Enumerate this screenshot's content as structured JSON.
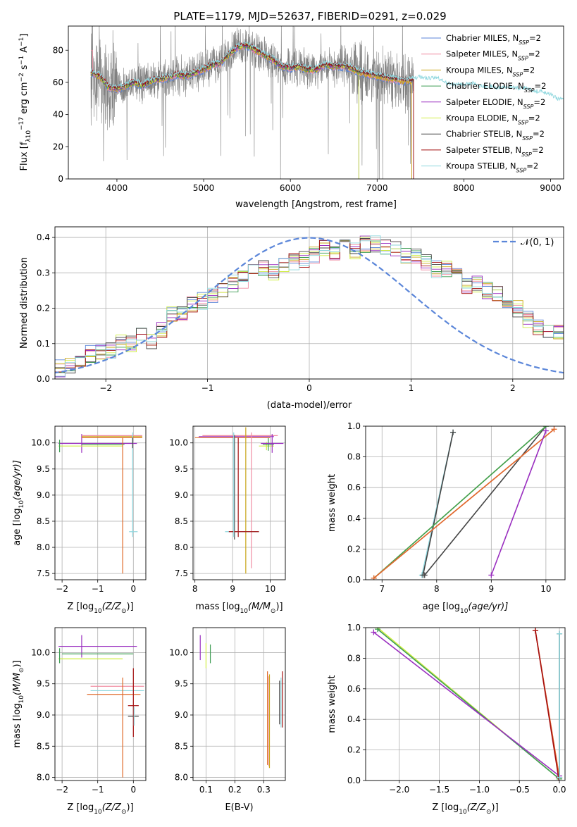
{
  "figure": {
    "title": "PLATE=1179, MJD=52637, FIBERID=0291, z=0.029"
  },
  "chart_data": [
    {
      "id": "spectrum",
      "type": "line",
      "xlabel": "wavelength [Angstrom, rest frame]",
      "ylabel_parts": [
        "Flux [f",
        "λ",
        "10",
        "−17",
        " erg cm",
        "−2",
        " s",
        "−1",
        " A",
        "−1",
        "]"
      ],
      "xlim": [
        3440,
        9150
      ],
      "ylim": [
        0,
        95
      ],
      "xticks": [
        4000,
        5000,
        6000,
        7000,
        8000,
        9000
      ],
      "yticks": [
        0,
        20,
        40,
        60,
        80
      ],
      "grid": false,
      "legend_position": "top-right",
      "data_color": "#808080",
      "data_range": [
        3700,
        7420
      ],
      "model_continuum": [
        [
          3700,
          66
        ],
        [
          3800,
          64
        ],
        [
          3900,
          57
        ],
        [
          4000,
          56
        ],
        [
          4100,
          58
        ],
        [
          4200,
          60
        ],
        [
          4300,
          58
        ],
        [
          4400,
          61
        ],
        [
          4500,
          62
        ],
        [
          4600,
          63
        ],
        [
          4700,
          65
        ],
        [
          4800,
          64
        ],
        [
          4900,
          66
        ],
        [
          5000,
          68
        ],
        [
          5100,
          71
        ],
        [
          5200,
          72
        ],
        [
          5300,
          78
        ],
        [
          5400,
          82
        ],
        [
          5500,
          83
        ],
        [
          5600,
          80
        ],
        [
          5700,
          77
        ],
        [
          5800,
          74
        ],
        [
          5900,
          70
        ],
        [
          6000,
          69
        ],
        [
          6100,
          70
        ],
        [
          6200,
          68
        ],
        [
          6300,
          68
        ],
        [
          6400,
          71
        ],
        [
          6500,
          70
        ],
        [
          6600,
          70
        ],
        [
          6700,
          69
        ],
        [
          6800,
          66
        ],
        [
          6900,
          65
        ],
        [
          7000,
          64
        ],
        [
          7100,
          63
        ],
        [
          7200,
          62
        ],
        [
          7300,
          61
        ],
        [
          7400,
          61
        ],
        [
          7500,
          62
        ],
        [
          7600,
          61
        ],
        [
          7700,
          61
        ],
        [
          7800,
          58
        ],
        [
          7900,
          57
        ],
        [
          8000,
          57
        ],
        [
          8100,
          58
        ],
        [
          8200,
          56
        ],
        [
          8300,
          56
        ],
        [
          8400,
          55
        ],
        [
          8500,
          56
        ],
        [
          8600,
          55
        ],
        [
          8700,
          55
        ],
        [
          8800,
          53
        ],
        [
          8900,
          53
        ],
        [
          9000,
          51
        ],
        [
          9100,
          48
        ]
      ],
      "series": [
        {
          "name": "Chabrier MILES, N",
          "sub": "SSP",
          "suffix": "=2",
          "color": "#5b86d9",
          "xmax": 7400
        },
        {
          "name": "Salpeter MILES, N",
          "sub": "SSP",
          "suffix": "=2",
          "color": "#f08ea2",
          "xmax": 7400
        },
        {
          "name": "Kroupa MILES, N",
          "sub": "SSP",
          "suffix": "=2",
          "color": "#c9a617",
          "xmax": 7400
        },
        {
          "name": "Chabrier ELODIE, N",
          "sub": "SSP",
          "suffix": "=2",
          "color": "#3f9d54",
          "xmax": 6790
        },
        {
          "name": "Salpeter ELODIE, N",
          "sub": "SSP",
          "suffix": "=2",
          "color": "#9a2fc0",
          "xmax": 6790
        },
        {
          "name": "Kroupa ELODIE, N",
          "sub": "SSP",
          "suffix": "=2",
          "color": "#cfee43",
          "xmax": 6790
        },
        {
          "name": "Chabrier STELIB, N",
          "sub": "SSP",
          "suffix": "=2",
          "color": "#444444",
          "xmax": 7420
        },
        {
          "name": "Salpeter STELIB, N",
          "sub": "SSP",
          "suffix": "=2",
          "color": "#a51010",
          "xmax": 7420
        },
        {
          "name": "Kroupa STELIB, N",
          "sub": "SSP",
          "suffix": "=2",
          "color": "#8fd7de",
          "xmax": 9150
        }
      ]
    },
    {
      "id": "residuals",
      "type": "step",
      "xlabel": "(data-model)/error",
      "ylabel": "Normed distribution",
      "xlim": [
        -2.5,
        2.5
      ],
      "ylim": [
        0,
        0.43
      ],
      "xticks": [
        -2,
        -1,
        0,
        1,
        2
      ],
      "yticks": [
        0.0,
        0.1,
        0.2,
        0.3,
        0.4
      ],
      "grid": true,
      "bin_width": 0.1,
      "reference_curve": {
        "name": "𝒩(0, 1)",
        "color": "#5b86d9",
        "dashed": true,
        "mean": 0,
        "sigma": 1
      },
      "base_histogram": [
        0.02,
        0.03,
        0.04,
        0.06,
        0.07,
        0.08,
        0.08,
        0.1,
        0.1,
        0.12,
        0.11,
        0.14,
        0.18,
        0.19,
        0.21,
        0.22,
        0.24,
        0.25,
        0.27,
        0.28,
        0.3,
        0.31,
        0.3,
        0.32,
        0.33,
        0.34,
        0.35,
        0.37,
        0.36,
        0.39,
        0.36,
        0.38,
        0.38,
        0.37,
        0.37,
        0.35,
        0.35,
        0.33,
        0.31,
        0.31,
        0.29,
        0.26,
        0.27,
        0.25,
        0.24,
        0.21,
        0.2,
        0.17,
        0.15,
        0.13,
        0.13,
        0.1,
        0.1,
        0.08,
        0.07,
        0.05,
        0.05,
        0.04,
        0.03,
        0.03,
        0.03,
        0.02,
        0.02
      ]
    },
    {
      "id": "age-vs-Z",
      "type": "errorbar",
      "xlabel_parts": [
        "Z [log",
        "10",
        "(Z/Z",
        "⊙",
        ")]"
      ],
      "ylabel_parts": [
        "age  [log",
        "10",
        "(age/yr)]"
      ],
      "xlim": [
        -2.2,
        0.35
      ],
      "ylim": [
        7.38,
        10.32
      ],
      "xticks": [
        -2,
        -1,
        0
      ],
      "yticks": [
        7.5,
        8.0,
        8.5,
        9.0,
        9.5,
        10.0
      ],
      "grid": true,
      "points": [
        {
          "x": -1.0,
          "xerr": 1.1,
          "y": 9.99,
          "yerr": 0.0,
          "color": "#9a2fc0"
        },
        {
          "x": -1.45,
          "xerr": 0.0,
          "y": 9.99,
          "yerr": 0.18,
          "color": "#9a2fc0"
        },
        {
          "x": -1.2,
          "xerr": 0.9,
          "y": 9.94,
          "yerr": 0.0,
          "color": "#cfee43"
        },
        {
          "x": -2.07,
          "xerr": 0.0,
          "y": 9.94,
          "yerr": 0.12,
          "color": "#3f9d54"
        },
        {
          "x": -0.85,
          "xerr": 0.6,
          "y": 9.97,
          "yerr": 0.0,
          "color": "#3f9d54"
        },
        {
          "x": -0.6,
          "xerr": 0.85,
          "y": 10.14,
          "yerr": 0.0,
          "color": "#f08ea2"
        },
        {
          "x": -0.6,
          "xerr": 0.85,
          "y": 10.12,
          "yerr": 0.0,
          "color": "#c9a617"
        },
        {
          "x": -0.6,
          "xerr": 0.85,
          "y": 10.1,
          "yerr": 0.0,
          "color": "#e06a2a"
        },
        {
          "x": -0.3,
          "xerr": 0.0,
          "y": 8.8,
          "yerr": 1.3,
          "color": "#e06a2a"
        },
        {
          "x": -0.02,
          "xerr": 0.0,
          "y": 9.2,
          "yerr": 1.0,
          "color": "#8fd7de"
        },
        {
          "x": 0.0,
          "xerr": 0.12,
          "y": 8.3,
          "yerr": 0.0,
          "color": "#8fd7de"
        },
        {
          "x": -0.02,
          "xerr": 0.0,
          "y": 10.0,
          "yerr": 0.1,
          "color": "#444444"
        }
      ]
    },
    {
      "id": "age-vs-mass",
      "type": "errorbar",
      "xlabel_parts": [
        "mass [log",
        "10",
        "(M/M",
        "⊙",
        ")]"
      ],
      "xlim": [
        7.95,
        10.4
      ],
      "ylim": [
        7.38,
        10.32
      ],
      "xticks": [
        8,
        9,
        10
      ],
      "yticks": [
        7.5,
        8.0,
        8.5,
        9.0,
        9.5,
        10.0
      ],
      "grid": true,
      "points": [
        {
          "x": 9.0,
          "xerr": 1.0,
          "y": 10.1,
          "yerr": 0.0,
          "color": "#e06a2a"
        },
        {
          "x": 9.2,
          "xerr": 1.0,
          "y": 10.14,
          "yerr": 0.0,
          "color": "#f08ea2"
        },
        {
          "x": 9.1,
          "xerr": 1.0,
          "y": 10.12,
          "yerr": 0.0,
          "color": "#9a2fc0"
        },
        {
          "x": 9.05,
          "xerr": 0.0,
          "y": 9.15,
          "yerr": 1.0,
          "color": "#444444"
        },
        {
          "x": 9.15,
          "xerr": 0.0,
          "y": 9.15,
          "yerr": 0.95,
          "color": "#a51010"
        },
        {
          "x": 9.35,
          "xerr": 0.0,
          "y": 8.9,
          "yerr": 1.4,
          "color": "#c9a617"
        },
        {
          "x": 9.5,
          "xerr": 0.0,
          "y": 8.9,
          "yerr": 1.3,
          "color": "#f08ea2"
        },
        {
          "x": 9.25,
          "xerr": 0.45,
          "y": 8.3,
          "yerr": 0.0,
          "color": "#8fd7de"
        },
        {
          "x": 9.3,
          "xerr": 0.4,
          "y": 8.3,
          "yerr": 0.0,
          "color": "#a51010"
        },
        {
          "x": 9.03,
          "xerr": 0.0,
          "y": 9.2,
          "yerr": 1.0,
          "color": "#8fd7de"
        },
        {
          "x": 9.9,
          "xerr": 0.2,
          "y": 9.94,
          "yerr": 0.08,
          "color": "#cfee43"
        },
        {
          "x": 9.95,
          "xerr": 0.15,
          "y": 9.97,
          "yerr": 0.12,
          "color": "#3f9d54"
        },
        {
          "x": 10.05,
          "xerr": 0.3,
          "y": 9.99,
          "yerr": 0.18,
          "color": "#9a2fc0"
        }
      ]
    },
    {
      "id": "weight-vs-age",
      "type": "line",
      "xlabel_parts": [
        "age  [log",
        "10",
        "(age/yr)]"
      ],
      "ylabel": "mass weight",
      "xlim": [
        6.7,
        10.35
      ],
      "ylim": [
        0,
        1
      ],
      "xticks": [
        7,
        8,
        9,
        10
      ],
      "yticks": [
        0.0,
        0.2,
        0.4,
        0.6,
        0.8,
        1.0
      ],
      "grid": true,
      "lines": [
        {
          "x": [
            7.73,
            8.3
          ],
          "y": [
            0.03,
            0.96
          ],
          "color": "#8fd7de"
        },
        {
          "x": [
            7.75,
            8.3
          ],
          "y": [
            0.03,
            0.96
          ],
          "color": "#444444"
        },
        {
          "x": [
            7.78,
            10.0
          ],
          "y": [
            0.03,
            1.0
          ],
          "color": "#444444"
        },
        {
          "x": [
            6.85,
            10.0
          ],
          "y": [
            0.01,
            1.0
          ],
          "color": "#cfee43"
        },
        {
          "x": [
            6.85,
            10.0
          ],
          "y": [
            0.01,
            1.0
          ],
          "color": "#3f9d54"
        },
        {
          "x": [
            6.85,
            10.15
          ],
          "y": [
            0.01,
            0.98
          ],
          "color": "#f08ea2"
        },
        {
          "x": [
            6.85,
            10.15
          ],
          "y": [
            0.01,
            0.98
          ],
          "color": "#e06a2a"
        },
        {
          "x": [
            9.0,
            10.0
          ],
          "y": [
            0.03,
            0.97
          ],
          "color": "#9a2fc0"
        }
      ]
    },
    {
      "id": "mass-vs-Z",
      "type": "errorbar",
      "xlabel_parts": [
        "Z [log",
        "10",
        "(Z/Z",
        "⊙",
        ")]"
      ],
      "ylabel_parts": [
        "mass [log",
        "10",
        "(M/M",
        "⊙",
        ")]"
      ],
      "xlim": [
        -2.2,
        0.35
      ],
      "ylim": [
        7.95,
        10.4
      ],
      "xticks": [
        -2,
        -1,
        0
      ],
      "yticks": [
        8.0,
        8.5,
        9.0,
        9.5,
        10.0
      ],
      "grid": true,
      "points": [
        {
          "x": -1.0,
          "xerr": 1.1,
          "y": 10.1,
          "yerr": 0.0,
          "color": "#9a2fc0"
        },
        {
          "x": -1.45,
          "xerr": 0.0,
          "y": 10.1,
          "yerr": 0.18,
          "color": "#9a2fc0"
        },
        {
          "x": -1.2,
          "xerr": 0.9,
          "y": 9.9,
          "yerr": 0.0,
          "color": "#cfee43"
        },
        {
          "x": -1.0,
          "xerr": 1.0,
          "y": 9.98,
          "yerr": 0.0,
          "color": "#3f9d54"
        },
        {
          "x": -2.07,
          "xerr": 0.0,
          "y": 9.95,
          "yerr": 0.12,
          "color": "#3f9d54"
        },
        {
          "x": -0.45,
          "xerr": 0.75,
          "y": 9.46,
          "yerr": 0.0,
          "color": "#f08ea2"
        },
        {
          "x": -0.45,
          "xerr": 0.75,
          "y": 9.39,
          "yerr": 0.0,
          "color": "#8fd7de"
        },
        {
          "x": -0.55,
          "xerr": 0.75,
          "y": 9.33,
          "yerr": 0.0,
          "color": "#e06a2a"
        },
        {
          "x": -0.3,
          "xerr": 0.0,
          "y": 8.8,
          "yerr": 0.8,
          "color": "#e06a2a"
        },
        {
          "x": 0.0,
          "xerr": 0.15,
          "y": 9.15,
          "yerr": 0.0,
          "color": "#a51010"
        },
        {
          "x": 0.0,
          "xerr": 0.0,
          "y": 9.2,
          "yerr": 0.55,
          "color": "#a51010"
        },
        {
          "x": 0.0,
          "xerr": 0.15,
          "y": 8.98,
          "yerr": 0.0,
          "color": "#444444"
        },
        {
          "x": 0.02,
          "xerr": 0.0,
          "y": 8.98,
          "yerr": 0.15,
          "color": "#8fd7de"
        }
      ]
    },
    {
      "id": "mass-vs-ebv",
      "type": "errorbar",
      "xlabel": "E(B-V)",
      "xlim": [
        0.055,
        0.375
      ],
      "ylim": [
        7.95,
        10.4
      ],
      "xticks": [
        0.1,
        0.2,
        0.3
      ],
      "yticks": [
        8.0,
        8.5,
        9.0,
        9.5,
        10.0
      ],
      "grid": true,
      "points": [
        {
          "x": 0.08,
          "xerr": 0.0,
          "y": 10.08,
          "yerr": 0.2,
          "color": "#9a2fc0"
        },
        {
          "x": 0.1,
          "xerr": 0.0,
          "y": 9.95,
          "yerr": 0.2,
          "color": "#cfee43"
        },
        {
          "x": 0.115,
          "xerr": 0.0,
          "y": 9.98,
          "yerr": 0.15,
          "color": "#3f9d54"
        },
        {
          "x": 0.313,
          "xerr": 0.0,
          "y": 8.95,
          "yerr": 0.75,
          "color": "#e06a2a"
        },
        {
          "x": 0.318,
          "xerr": 0.0,
          "y": 8.9,
          "yerr": 0.72,
          "color": "#f08ea2"
        },
        {
          "x": 0.32,
          "xerr": 0.0,
          "y": 8.9,
          "yerr": 0.75,
          "color": "#c9a617"
        },
        {
          "x": 0.355,
          "xerr": 0.0,
          "y": 9.2,
          "yerr": 0.35,
          "color": "#444444"
        },
        {
          "x": 0.36,
          "xerr": 0.0,
          "y": 9.2,
          "yerr": 0.4,
          "color": "#8fd7de"
        },
        {
          "x": 0.365,
          "xerr": 0.0,
          "y": 9.25,
          "yerr": 0.45,
          "color": "#a51010"
        }
      ]
    },
    {
      "id": "weight-vs-Z",
      "type": "line",
      "xlabel_parts": [
        "Z [log",
        "10",
        "(Z/Z",
        "⊙",
        ")]"
      ],
      "ylabel": "mass weight",
      "xlim": [
        -2.42,
        0.07
      ],
      "ylim": [
        0,
        1
      ],
      "xticks": [
        -2.0,
        -1.5,
        -1.0,
        -0.5,
        0.0
      ],
      "yticks": [
        0.0,
        0.2,
        0.4,
        0.6,
        0.8,
        1.0
      ],
      "grid": true,
      "lines": [
        {
          "x": [
            -2.27,
            0.0
          ],
          "y": [
            1.0,
            0.01
          ],
          "color": "#cfee43"
        },
        {
          "x": [
            -2.27,
            0.0
          ],
          "y": [
            0.99,
            0.01
          ],
          "color": "#3f9d54"
        },
        {
          "x": [
            -2.32,
            0.0
          ],
          "y": [
            0.97,
            0.03
          ],
          "color": "#9a2fc0"
        },
        {
          "x": [
            -0.3,
            0.0
          ],
          "y": [
            0.98,
            0.02
          ],
          "color": "#f08ea2"
        },
        {
          "x": [
            -0.3,
            0.0
          ],
          "y": [
            0.98,
            0.02
          ],
          "color": "#e06a2a"
        },
        {
          "x": [
            -0.3,
            -0.01
          ],
          "y": [
            0.98,
            0.02
          ],
          "color": "#a51010"
        },
        {
          "x": [
            0.0,
            0.0
          ],
          "y": [
            0.96,
            0.02
          ],
          "color": "#444444"
        },
        {
          "x": [
            0.0,
            0.0
          ],
          "y": [
            0.96,
            0.02
          ],
          "color": "#8fd7de"
        }
      ]
    }
  ]
}
